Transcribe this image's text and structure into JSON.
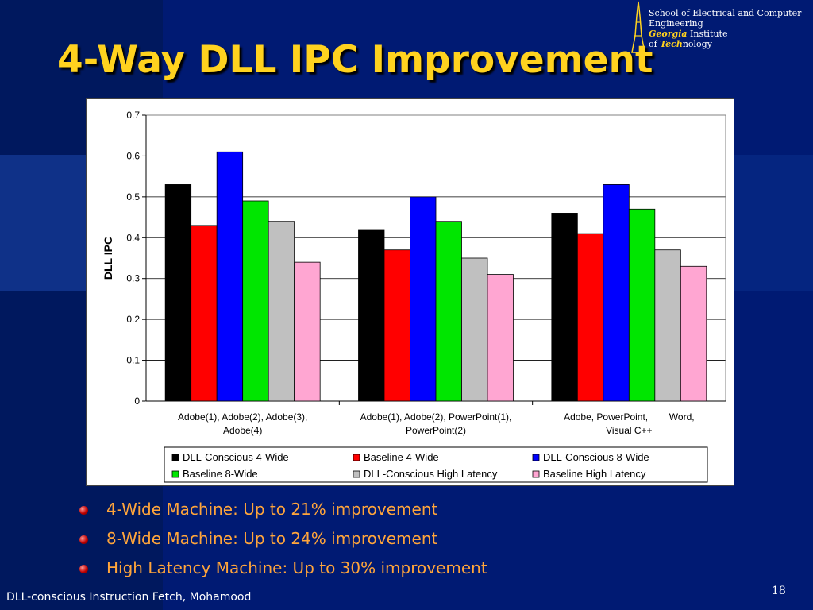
{
  "slide": {
    "title": "4-Way DLL IPC Improvement",
    "logo": {
      "line1": "School of Electrical and Computer",
      "line2": "Engineering",
      "line3_bold": "Georgia",
      "line3_rest": " Institute",
      "line4_pre": "of ",
      "line4_bold": "Tech",
      "line4_rest": "nology"
    },
    "bullets": [
      "4-Wide Machine: Up to 21% improvement",
      "8-Wide Machine: Up to 24% improvement",
      "High Latency Machine: Up to 30% improvement"
    ],
    "footer": "DLL-conscious Instruction Fetch, Mohamood",
    "page_number": "18"
  },
  "chart_data": {
    "type": "bar",
    "ylabel": "DLL IPC",
    "xlabel": "",
    "ylim": [
      0,
      0.7
    ],
    "yticks": [
      "0",
      "0.1",
      "0.2",
      "0.3",
      "0.4",
      "0.5",
      "0.6",
      "0.7"
    ],
    "grid": true,
    "legend_position": "bottom",
    "categories": [
      [
        "Adobe(1), Adobe(2), Adobe(3),",
        "Adobe(4)"
      ],
      [
        "Adobe(1), Adobe(2), PowerPoint(1),",
        "PowerPoint(2)"
      ],
      [
        "Adobe, PowerPoint,        Word,",
        "Visual C++"
      ]
    ],
    "series": [
      {
        "name": "DLL-Conscious 4-Wide",
        "color": "#000000",
        "values": [
          0.53,
          0.42,
          0.46
        ]
      },
      {
        "name": "Baseline 4-Wide",
        "color": "#ff0000",
        "values": [
          0.43,
          0.37,
          0.41
        ]
      },
      {
        "name": "DLL-Conscious 8-Wide",
        "color": "#0000ff",
        "values": [
          0.61,
          0.5,
          0.53
        ]
      },
      {
        "name": "Baseline 8-Wide",
        "color": "#00e600",
        "values": [
          0.49,
          0.44,
          0.47
        ]
      },
      {
        "name": "DLL-Conscious High Latency",
        "color": "#c0c0c0",
        "values": [
          0.44,
          0.35,
          0.37
        ]
      },
      {
        "name": "Baseline High Latency",
        "color": "#ffa6d2",
        "values": [
          0.34,
          0.31,
          0.33
        ]
      }
    ]
  }
}
